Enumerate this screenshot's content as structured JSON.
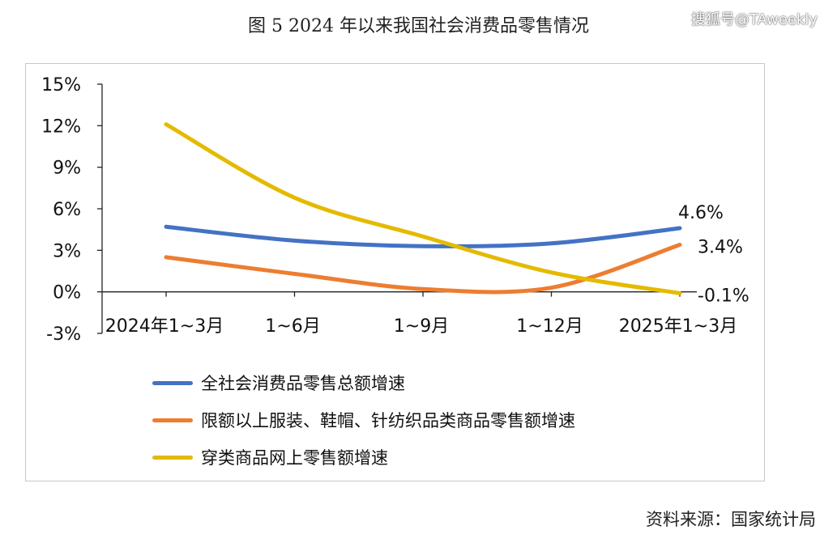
{
  "title": "图 5   2024 年以来我国社会消费品零售情况",
  "watermark": "搜狐号@TAweekly",
  "source": "资料来源：国家统计局",
  "chart_data": {
    "type": "line",
    "categories": [
      "2024年1~3月",
      "1~6月",
      "1~9月",
      "1~12月",
      "2025年1~3月"
    ],
    "ylim": [
      -3,
      15
    ],
    "yticks": [
      "-3%",
      "0%",
      "3%",
      "6%",
      "9%",
      "12%",
      "15%"
    ],
    "ytick_values": [
      -3,
      0,
      3,
      6,
      9,
      12,
      15
    ],
    "legend_position": "bottom",
    "grid": false,
    "series": [
      {
        "name": "全社会消费品零售总额增速",
        "color": "#4472C4",
        "values": [
          4.7,
          3.7,
          3.3,
          3.5,
          4.6
        ],
        "end_label": "4.6%"
      },
      {
        "name": "限额以上服装、鞋帽、针纺织品类商品零售额增速",
        "color": "#ED7D31",
        "values": [
          2.5,
          1.3,
          0.2,
          0.3,
          3.4
        ],
        "end_label": "3.4%"
      },
      {
        "name": "穿类商品网上零售额增速",
        "color": "#E4BA00",
        "values": [
          12.1,
          6.8,
          4.0,
          1.4,
          -0.1
        ],
        "end_label": "-0.1%"
      }
    ]
  }
}
